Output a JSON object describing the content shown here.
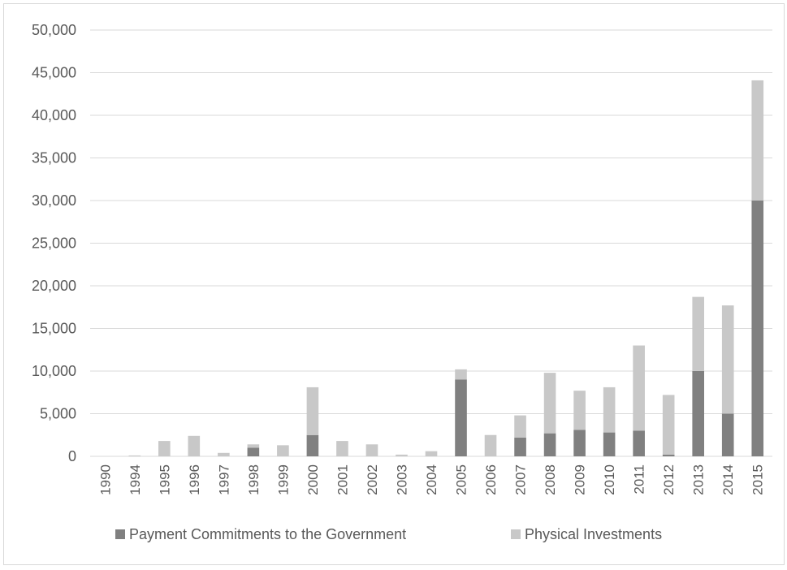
{
  "chart_data": {
    "type": "bar",
    "stacked": true,
    "categories": [
      "1990",
      "1994",
      "1995",
      "1996",
      "1997",
      "1998",
      "1999",
      "2000",
      "2001",
      "2002",
      "2003",
      "2004",
      "2005",
      "2006",
      "2007",
      "2008",
      "2009",
      "2010",
      "2011",
      "2012",
      "2013",
      "2014",
      "2015"
    ],
    "series": [
      {
        "name": "Payment Commitments to the Government",
        "color": "#808080",
        "values": [
          0,
          0,
          0,
          0,
          0,
          1000,
          0,
          2500,
          0,
          0,
          0,
          0,
          9000,
          0,
          2200,
          2700,
          3100,
          2800,
          3000,
          200,
          10000,
          5000,
          30000
        ]
      },
      {
        "name": "Physical Investments",
        "color": "#c8c8c8",
        "values": [
          0,
          100,
          1800,
          2400,
          400,
          400,
          1300,
          5600,
          1800,
          1400,
          200,
          600,
          1200,
          2500,
          2600,
          7100,
          4600,
          5300,
          10000,
          7000,
          8700,
          12700,
          14100
        ]
      }
    ],
    "ylim": [
      0,
      50000
    ],
    "yticks": [
      "0",
      "5,000",
      "10,000",
      "15,000",
      "20,000",
      "25,000",
      "30,000",
      "35,000",
      "40,000",
      "45,000",
      "50,000"
    ],
    "ytick_values": [
      0,
      5000,
      10000,
      15000,
      20000,
      25000,
      30000,
      35000,
      40000,
      45000,
      50000
    ],
    "grid": true,
    "legend_position": "bottom",
    "gridline_color": "#d9d9d9"
  }
}
